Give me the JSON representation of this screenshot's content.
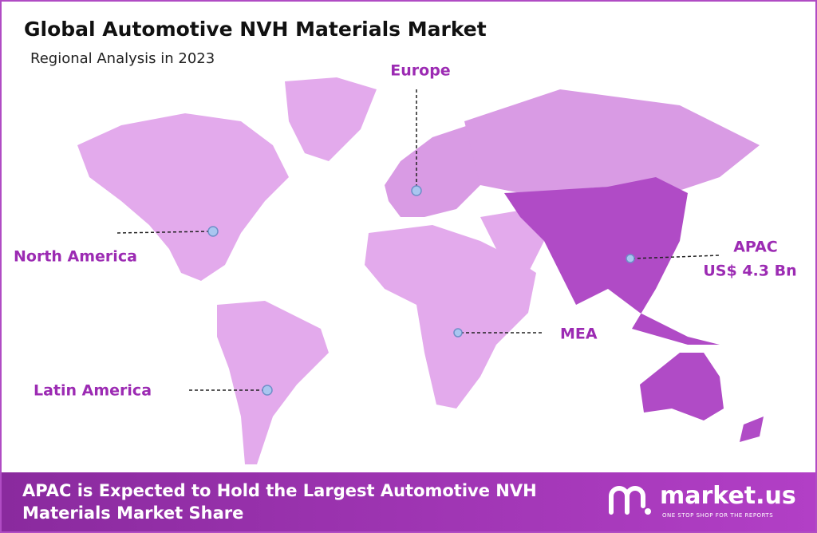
{
  "header": {
    "title": "Global Automotive NVH Materials Market",
    "subtitle": "Regional Analysis in 2023"
  },
  "regions": [
    {
      "label": "Europe"
    },
    {
      "label": "North America"
    },
    {
      "label": "APAC",
      "value": "US$ 4.3 Bn"
    },
    {
      "label": "MEA"
    },
    {
      "label": "Latin America"
    }
  ],
  "footer": {
    "text": "APAC is Expected to Hold the Largest Automotive NVH Materials Market Share",
    "logo": "market.us",
    "tagline": "ONE STOP SHOP FOR THE REPORTS"
  }
}
